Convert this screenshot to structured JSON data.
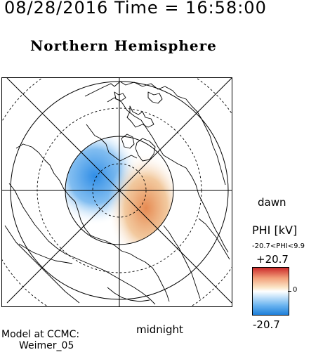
{
  "header": {
    "timestamp": "08/28/2016 Time = 16:58:00",
    "title": "Northern Hemisphere"
  },
  "map": {
    "projection": "polar stereographic, north pole centered",
    "orientation_labels": {
      "dawn": "dawn",
      "midnight": "midnight"
    },
    "field": "electric potential",
    "negative_cell_color": "#3d95e6",
    "positive_cell_color": "#e89966",
    "coastline_color": "#000000"
  },
  "legend": {
    "title": "PHI [kV]",
    "range_text": "-20.7<PHI<9.9",
    "max_label": "+20.7",
    "zero_label": "0",
    "min_label": "-20.7",
    "colors": {
      "top": "#cc2b2b",
      "mid": "#ffffff",
      "bottom": "#1f7fd9"
    }
  },
  "footer": {
    "model_label": "Model at CCMC:",
    "model_name": "Weimer_05"
  }
}
